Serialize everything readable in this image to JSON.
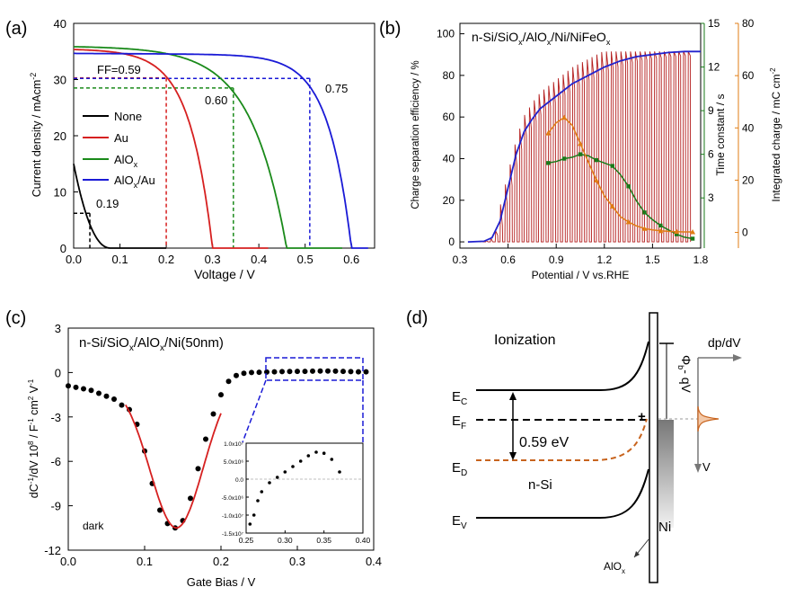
{
  "figure": {
    "panels": [
      "(a)",
      "(b)",
      "(c)",
      "(d)"
    ]
  },
  "chart_data": [
    {
      "id": "a",
      "type": "line",
      "xlabel": "Voltage / V",
      "ylabel": "Current density / mAcm",
      "ylabel_sup": "-2",
      "xlim": [
        0,
        0.65
      ],
      "ylim": [
        0,
        40
      ],
      "xticks": [
        0.0,
        0.1,
        0.2,
        0.3,
        0.4,
        0.5,
        0.6
      ],
      "xtick_labels": [
        "0.0",
        "0.1",
        "0.2",
        "0.3",
        "0.4",
        "0.5",
        "0.6"
      ],
      "yticks": [
        0,
        10,
        20,
        30,
        40
      ],
      "ytick_labels": [
        "0",
        "10",
        "20",
        "30",
        "40"
      ],
      "series": [
        {
          "name": "None",
          "color": "#000000",
          "jsc": 15.0,
          "voc": 0.08,
          "ff": 0.19,
          "vmp": 0.035,
          "jmp": 6.2
        },
        {
          "name": "Au",
          "color": "#d62020",
          "jsc": 35.1,
          "voc": 0.3,
          "ff": 0.59,
          "vmp": 0.2,
          "jmp": 30.3
        },
        {
          "name": "AlOx",
          "name_main": "AlO",
          "name_sub": "x",
          "color": "#1a8a1a",
          "jsc": 35.6,
          "voc": 0.46,
          "ff": 0.6,
          "vmp": 0.345,
          "jmp": 28.5
        },
        {
          "name": "AlOx/Au",
          "name_main": "AlO",
          "name_sub": "x",
          "name_tail": "/Au",
          "color": "#1a1ad6",
          "jsc": 34.4,
          "voc": 0.6,
          "ff": 0.75,
          "vmp": 0.51,
          "jmp": 30.2
        }
      ],
      "annotations": [
        {
          "text": "FF=0.59",
          "color": "#d62020"
        },
        {
          "text": "0.60",
          "color": "#1a8a1a"
        },
        {
          "text": "0.75",
          "color": "#1a1ad6"
        },
        {
          "text": "0.19",
          "color": "#000000"
        }
      ]
    },
    {
      "id": "b",
      "type": "line",
      "title_parts": [
        "n-Si/SiO",
        "x",
        "/AlO",
        "x",
        "/Ni/NiFeO",
        "x"
      ],
      "xlabel": "Potential / V vs.RHE",
      "ylabel_left": "Charge separation efficiency / %",
      "ylabel_right1": "Time constant / s",
      "ylabel_right2": "Integrated charge / mC cm",
      "ylabel_right2_sup": "-2",
      "xlim": [
        0.3,
        1.8
      ],
      "ylim_left": [
        -3,
        105
      ],
      "ylim_right1": [
        -0.45,
        15
      ],
      "ylim_right2": [
        -6,
        80
      ],
      "xtick_labels": [
        "0.3",
        "0.6",
        "0.9",
        "1.2",
        "1.5",
        "1.8"
      ],
      "ytick_left_labels": [
        "0",
        "20",
        "40",
        "60",
        "80",
        "100"
      ],
      "ytick_right1_labels": [
        "3",
        "6",
        "9",
        "12",
        "15"
      ],
      "ytick_right2_labels": [
        "0",
        "20",
        "40",
        "60",
        "80"
      ],
      "efficiency_curve": {
        "color": "#2222cc",
        "x": [
          0.35,
          0.45,
          0.5,
          0.55,
          0.6,
          0.65,
          0.7,
          0.75,
          0.8,
          0.9,
          1.0,
          1.1,
          1.2,
          1.3,
          1.4,
          1.5,
          1.6,
          1.7,
          1.8
        ],
        "y": [
          0,
          0.3,
          2,
          10,
          26,
          42,
          53,
          59,
          64,
          70,
          76,
          80,
          84,
          87,
          89,
          90,
          91,
          91.5,
          91.5
        ]
      },
      "pulse_train": {
        "color": "#b41e1e",
        "x_start": 0.4,
        "x_end": 1.75,
        "step": 0.03,
        "peak": 91.5
      },
      "time_constant": {
        "color": "#1a7a1a",
        "x": [
          0.85,
          0.9,
          0.95,
          1.0,
          1.05,
          1.1,
          1.15,
          1.2,
          1.25,
          1.3,
          1.35,
          1.4,
          1.45,
          1.5,
          1.55,
          1.6,
          1.65,
          1.7,
          1.75
        ],
        "y": [
          5.4,
          5.5,
          5.7,
          5.8,
          6.0,
          5.9,
          5.6,
          5.4,
          5.2,
          4.6,
          3.8,
          2.8,
          2.0,
          1.5,
          1.1,
          0.8,
          0.5,
          0.3,
          0.2
        ]
      },
      "integrated_charge": {
        "color": "#e07d14",
        "x": [
          0.85,
          0.9,
          0.95,
          1.0,
          1.05,
          1.1,
          1.15,
          1.2,
          1.25,
          1.3,
          1.35,
          1.4,
          1.45,
          1.5,
          1.55,
          1.6,
          1.65,
          1.7,
          1.75
        ],
        "y": [
          38,
          42,
          44,
          41,
          34,
          27,
          20,
          14,
          10,
          6,
          4,
          2.5,
          1.5,
          1,
          0.6,
          0.4,
          0.3,
          0.2,
          0.2
        ]
      }
    },
    {
      "id": "c",
      "type": "scatter",
      "title_parts": [
        "n-Si/SiO",
        "x",
        "/AlO",
        "x",
        "/Ni(50nm)"
      ],
      "label": "dark",
      "xlabel": "Gate Bias / V",
      "ylabel": "dC",
      "ylabel_full": "dC-1/dV 10^8 / F-1 cm2 V-1",
      "xlim": [
        0,
        0.4
      ],
      "ylim": [
        -12,
        3
      ],
      "xtick_labels": [
        "0.0",
        "0.1",
        "0.2",
        "0.3",
        "0.4"
      ],
      "ytick_labels": [
        "3",
        "0",
        "-3",
        "-6",
        "-9",
        "-12"
      ],
      "points_x": [
        0.0,
        0.01,
        0.02,
        0.03,
        0.04,
        0.05,
        0.06,
        0.07,
        0.08,
        0.09,
        0.1,
        0.11,
        0.12,
        0.13,
        0.14,
        0.15,
        0.16,
        0.17,
        0.18,
        0.19,
        0.2,
        0.21,
        0.22,
        0.23,
        0.24,
        0.25,
        0.26,
        0.27,
        0.28,
        0.29,
        0.3,
        0.31,
        0.32,
        0.33,
        0.34,
        0.35,
        0.36,
        0.37,
        0.38,
        0.39
      ],
      "points_y": [
        -0.9,
        -1.0,
        -1.1,
        -1.2,
        -1.4,
        -1.6,
        -1.8,
        -2.2,
        -2.5,
        -3.5,
        -5.3,
        -7.5,
        -9.3,
        -10.2,
        -10.5,
        -10.0,
        -8.5,
        -6.5,
        -4.5,
        -2.8,
        -1.5,
        -0.6,
        -0.2,
        -0.05,
        0.0,
        0.02,
        0.03,
        0.05,
        0.06,
        0.07,
        0.08,
        0.08,
        0.09,
        0.1,
        0.1,
        0.09,
        0.08,
        0.06,
        0.05,
        0.05
      ],
      "fit": {
        "color": "#d62020",
        "center": 0.142,
        "depth": 10.5,
        "width": 0.035,
        "baseline": -0.6,
        "x_range": [
          0.075,
          0.2
        ]
      },
      "inset": {
        "xlim": [
          0.25,
          0.4
        ],
        "ylim": [
          -1.5,
          1.0
        ],
        "xtick_labels": [
          "0.25",
          "0.30",
          "0.35",
          "0.40"
        ],
        "ytick_labels": [
          "1.0x10⁷",
          "5.0x10⁶",
          "0.0",
          "-5.0x10⁶",
          "-1.0x10⁷",
          "-1.5x10⁷"
        ],
        "x": [
          0.255,
          0.26,
          0.265,
          0.27,
          0.28,
          0.29,
          0.3,
          0.31,
          0.32,
          0.33,
          0.34,
          0.35,
          0.36,
          0.37
        ],
        "y": [
          -1.25,
          -1.0,
          -0.6,
          -0.35,
          -0.1,
          0.05,
          0.2,
          0.35,
          0.5,
          0.65,
          0.75,
          0.72,
          0.55,
          0.2
        ]
      }
    },
    {
      "id": "d",
      "type": "diagram",
      "labels": {
        "ionization": "Ionization",
        "ec": "E",
        "ec_sub": "C",
        "ef": "E",
        "ef_sub": "F",
        "ed": "E",
        "ed_sub": "D",
        "ev": "E",
        "ev_sub": "V",
        "energy": "0.59 eV",
        "nsi": "n-Si",
        "ni": "Ni",
        "aloxm": "AlO",
        "aloxs": "x",
        "barrier": "Φ",
        "barrier_sub": "b",
        "barrier_tail": "- qV",
        "dpdv": "dp/dV",
        "v": "V",
        "plus": "+"
      },
      "colors": {
        "ed": "#c8641e",
        "plus": "#cc2222",
        "axis": "#777777",
        "peak": "#c8641e"
      }
    }
  ]
}
